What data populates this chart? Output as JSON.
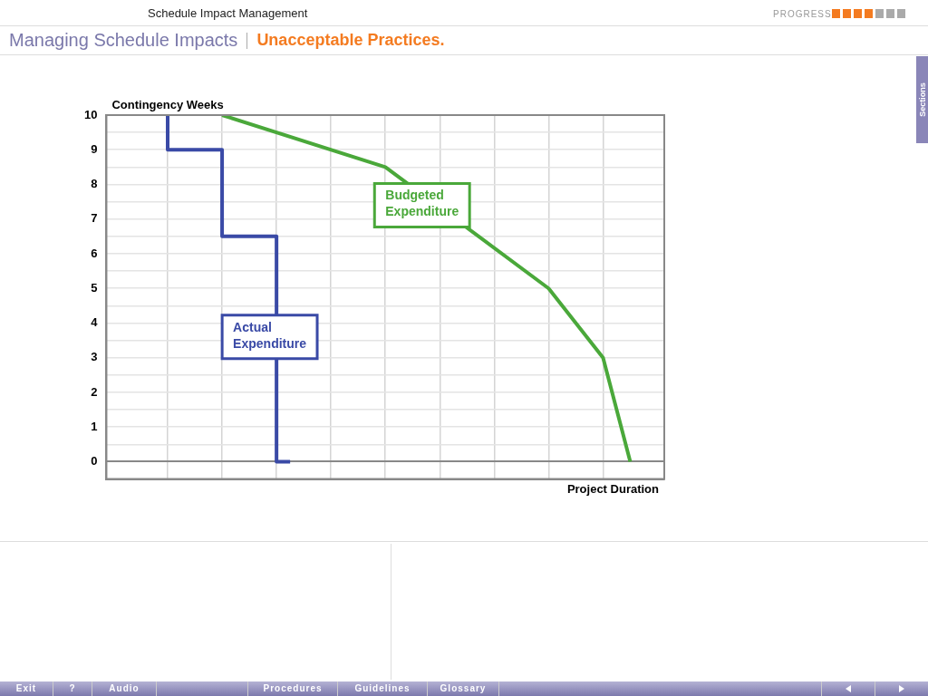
{
  "chart_data": {
    "type": "line",
    "title": "Managing Schedule Impacts",
    "subtitle": "Unacceptable Practices.",
    "xlabel": "Project Duration",
    "ylabel": "Contingency Weeks",
    "annotations": [
      "Schedule Impact Management",
      "PROGRESS",
      "Sections",
      "Exit",
      "?",
      "Audio",
      "Procedures",
      "Guidelines",
      "Glossary"
    ],
    "categories": [
      null,
      null,
      null,
      null,
      null,
      null,
      null,
      null,
      null,
      null,
      null,
      null,
      null,
      null,
      null,
      null,
      null,
      null,
      null,
      null,
      null,
      null,
      null,
      null,
      null,
      null,
      null,
      null,
      null,
      null,
      null,
      null,
      null,
      null,
      null,
      null,
      null,
      null,
      null,
      null,
      null
    ],
    "series": [
      {
        "name": "Actual Expenditure",
        "type": "step",
        "color": "#3a4aa6",
        "values": [
          null,
          null,
          null,
          null,
          10,
          null,
          null,
          null,
          9,
          null,
          null,
          null,
          6.5,
          0,
          null,
          null,
          null,
          null,
          null,
          null,
          null,
          null,
          null,
          null,
          null,
          null,
          null,
          null,
          null,
          null,
          null,
          null,
          null,
          null,
          null,
          null,
          null,
          null,
          null,
          null,
          null
        ]
      },
      {
        "name": "Budgeted Expenditure",
        "color": "#4aa83a",
        "values": [
          null,
          null,
          null,
          null,
          null,
          null,
          null,
          null,
          10,
          null,
          null,
          null,
          null,
          null,
          null,
          null,
          null,
          null,
          null,
          null,
          8.5,
          null,
          null,
          null,
          null,
          null,
          null,
          null,
          null,
          null,
          null,
          null,
          5,
          null,
          null,
          null,
          3,
          null,
          0,
          null,
          null
        ]
      }
    ],
    "ylim": [
      -0.5,
      10
    ],
    "yticks": [
      0,
      1,
      2,
      3,
      4,
      5,
      6,
      7,
      8,
      9,
      10
    ],
    "grid": true,
    "legend": false,
    "marker": "none",
    "line_style": "solid"
  }
}
